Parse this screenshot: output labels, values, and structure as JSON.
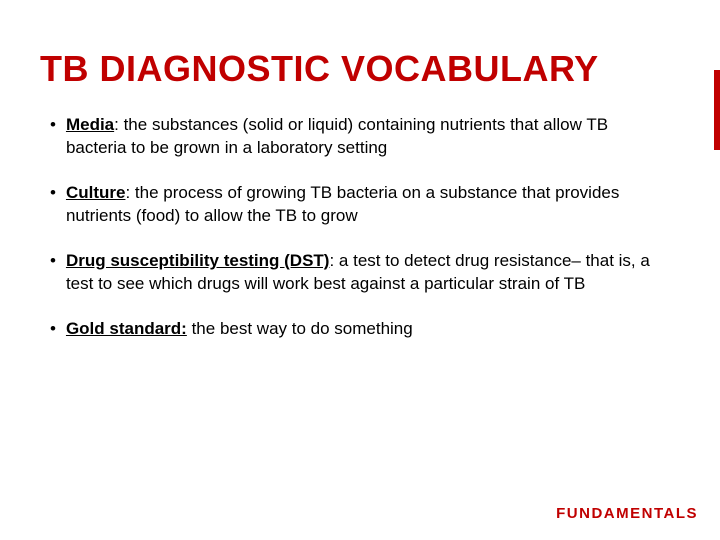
{
  "title_color": "#c00000",
  "accent_color": "#c00000",
  "text_color": "#000000",
  "background_color": "#ffffff",
  "title_fontsize": 36,
  "body_fontsize": 17,
  "footer_fontsize": 15,
  "title": "TB DIAGNOSTIC VOCABULARY",
  "bullets": [
    {
      "term": "Media",
      "definition": ": the substances (solid or liquid) containing nutrients that allow TB bacteria to be grown in a laboratory setting"
    },
    {
      "term": "Culture",
      "definition": ": the process of growing TB bacteria on a substance that provides nutrients (food) to allow the TB to grow"
    },
    {
      "term": "Drug susceptibility testing (DST)",
      "definition": ": a test to detect drug resistance– that is, a test to see which drugs will work best against a particular strain of TB"
    },
    {
      "term": "Gold standard:",
      "definition": " the best way to do something"
    }
  ],
  "footer": "FUNDAMENTALS"
}
